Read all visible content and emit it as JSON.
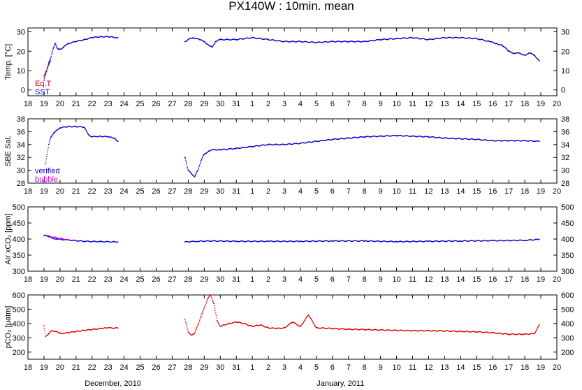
{
  "title": "PX140W : 10min. mean",
  "x_axis": {
    "tick_labels": [
      "18",
      "19",
      "20",
      "21",
      "22",
      "23",
      "24",
      "25",
      "26",
      "27",
      "28",
      "29",
      "30",
      "31",
      "1",
      "2",
      "3",
      "4",
      "5",
      "6",
      "7",
      "8",
      "9",
      "10",
      "11",
      "12",
      "13",
      "14",
      "15",
      "16",
      "17",
      "18",
      "19",
      "20"
    ],
    "month_labels": [
      {
        "text": "December, 2010",
        "at": 5.3
      },
      {
        "text": "January, 2011",
        "at": 19.5
      }
    ]
  },
  "colors": {
    "red": "#dd0000",
    "blue": "#0000cc",
    "magenta": "#cc00cc",
    "axis": "#000000"
  },
  "chart_data": [
    {
      "type": "scatter",
      "ylabel": "Temp. [°C]",
      "ylim": [
        -3,
        32
      ],
      "yticks": [
        0,
        10,
        20,
        30
      ],
      "legend": [
        {
          "name": "Eq.T",
          "color": "#dd0000"
        },
        {
          "name": "SST",
          "color": "#0000cc"
        }
      ],
      "series": [
        {
          "name": "Eq.T",
          "color": "#dd0000",
          "points": [
            [
              1.0,
              7
            ],
            [
              1.1,
              9
            ],
            [
              1.2,
              11
            ],
            [
              1.3,
              13
            ],
            [
              1.4,
              15
            ]
          ]
        },
        {
          "name": "SST",
          "color": "#0000cc",
          "points": [
            [
              1.0,
              5
            ],
            [
              1.1,
              8
            ],
            [
              1.2,
              11
            ],
            [
              1.3,
              14
            ],
            [
              1.4,
              16
            ],
            [
              1.5,
              19
            ],
            [
              1.6,
              22
            ],
            [
              1.7,
              24
            ],
            [
              1.8,
              22
            ],
            [
              1.9,
              21
            ],
            [
              2.0,
              21
            ],
            [
              2.2,
              22
            ],
            [
              2.5,
              24
            ],
            [
              3.0,
              25
            ],
            [
              3.5,
              26
            ],
            [
              4.0,
              27
            ],
            [
              4.5,
              27.5
            ],
            [
              5.0,
              27.5
            ],
            [
              5.6,
              27
            ],
            [
              9.8,
              25
            ],
            [
              10.0,
              26
            ],
            [
              10.3,
              27
            ],
            [
              10.7,
              26
            ],
            [
              11.0,
              25
            ],
            [
              11.3,
              23
            ],
            [
              11.5,
              22
            ],
            [
              11.7,
              25
            ],
            [
              12.0,
              26
            ],
            [
              13.0,
              26
            ],
            [
              14.0,
              27
            ],
            [
              15.0,
              26
            ],
            [
              16.0,
              25
            ],
            [
              17.0,
              25
            ],
            [
              18.0,
              24.5
            ],
            [
              19.0,
              25
            ],
            [
              20.0,
              25
            ],
            [
              21.0,
              25
            ],
            [
              22.0,
              26
            ],
            [
              23.0,
              26.5
            ],
            [
              24.0,
              27
            ],
            [
              25.0,
              26
            ],
            [
              26.0,
              27
            ],
            [
              27.0,
              27
            ],
            [
              28.0,
              26.5
            ],
            [
              28.8,
              25
            ],
            [
              29.2,
              24
            ],
            [
              29.6,
              23
            ],
            [
              30.0,
              20
            ],
            [
              30.3,
              19
            ],
            [
              30.6,
              19
            ],
            [
              31.0,
              18
            ],
            [
              31.3,
              19
            ],
            [
              31.6,
              18
            ],
            [
              31.8,
              16
            ],
            [
              31.9,
              15
            ]
          ]
        }
      ]
    },
    {
      "type": "scatter",
      "ylabel": "SBE Sal.",
      "ylim": [
        28,
        38
      ],
      "yticks": [
        28,
        30,
        32,
        34,
        36,
        38
      ],
      "legend": [
        {
          "name": "verified",
          "color": "#0000cc"
        },
        {
          "name": "bubble",
          "color": "#cc00cc"
        }
      ],
      "series": [
        {
          "name": "verified",
          "color": "#0000cc",
          "points": [
            [
              1.1,
              31
            ],
            [
              1.2,
              32.5
            ],
            [
              1.3,
              34
            ],
            [
              1.4,
              35
            ],
            [
              1.6,
              35.8
            ],
            [
              1.8,
              36.2
            ],
            [
              2.0,
              36.6
            ],
            [
              2.5,
              36.8
            ],
            [
              3.0,
              36.8
            ],
            [
              3.5,
              36.7
            ],
            [
              3.8,
              35.5
            ],
            [
              4.0,
              35.2
            ],
            [
              4.5,
              35.3
            ],
            [
              5.0,
              35.2
            ],
            [
              5.4,
              35
            ],
            [
              5.6,
              34.5
            ],
            [
              9.8,
              32
            ],
            [
              9.9,
              31
            ],
            [
              10.0,
              30
            ],
            [
              10.2,
              29.5
            ],
            [
              10.4,
              29
            ],
            [
              10.6,
              30
            ],
            [
              10.8,
              31.5
            ],
            [
              11.0,
              32.5
            ],
            [
              11.3,
              33
            ],
            [
              11.6,
              33.2
            ],
            [
              12.0,
              33.2
            ],
            [
              13.0,
              33.4
            ],
            [
              14.0,
              33.7
            ],
            [
              15.0,
              34
            ],
            [
              16.0,
              34
            ],
            [
              17.0,
              34.2
            ],
            [
              18.0,
              34.5
            ],
            [
              19.0,
              34.8
            ],
            [
              20.0,
              35
            ],
            [
              21.0,
              35.2
            ],
            [
              22.0,
              35.3
            ],
            [
              23.0,
              35.4
            ],
            [
              24.0,
              35.3
            ],
            [
              25.0,
              35.2
            ],
            [
              26.0,
              35
            ],
            [
              27.0,
              34.9
            ],
            [
              28.0,
              34.8
            ],
            [
              29.0,
              34.6
            ],
            [
              30.0,
              34.6
            ],
            [
              31.0,
              34.6
            ],
            [
              31.9,
              34.5
            ]
          ]
        },
        {
          "name": "bubble",
          "color": "#cc00cc",
          "points": []
        }
      ]
    },
    {
      "type": "scatter",
      "ylabel": "Air xCO₂ [ppm]",
      "ylim": [
        300,
        500
      ],
      "yticks": [
        300,
        350,
        400,
        450,
        500
      ],
      "legend": [],
      "series": [
        {
          "name": "",
          "color": "#0000cc",
          "points": [
            [
              1.0,
              410
            ],
            [
              1.1,
              412
            ],
            [
              1.3,
              408
            ],
            [
              1.5,
              403
            ],
            [
              1.8,
              400
            ],
            [
              2.5,
              397
            ],
            [
              3.5,
              393
            ],
            [
              4.5,
              392
            ],
            [
              5.6,
              391
            ],
            [
              9.8,
              391
            ],
            [
              10.5,
              393
            ],
            [
              11.5,
              394
            ],
            [
              13.0,
              393
            ],
            [
              15.0,
              393
            ],
            [
              17.0,
              393
            ],
            [
              19.0,
              394
            ],
            [
              21.0,
              394
            ],
            [
              23.0,
              392
            ],
            [
              25.0,
              393
            ],
            [
              27.0,
              394
            ],
            [
              29.0,
              395
            ],
            [
              31.0,
              396
            ],
            [
              31.9,
              399
            ]
          ]
        },
        {
          "name": "",
          "color": "#cc00cc",
          "points": [
            [
              1.2,
              410
            ],
            [
              2.6,
              396
            ],
            [
              10.1,
              392
            ],
            [
              20.5,
              394
            ]
          ]
        }
      ]
    },
    {
      "type": "scatter",
      "ylabel": "pCO₂ [μatm]",
      "ylim": [
        150,
        600
      ],
      "yticks": [
        200,
        300,
        400,
        500,
        600
      ],
      "legend": [],
      "series": [
        {
          "name": "",
          "color": "#dd0000",
          "points": [
            [
              1.0,
              385
            ],
            [
              1.1,
              310
            ],
            [
              1.3,
              330
            ],
            [
              1.5,
              350
            ],
            [
              1.8,
              345
            ],
            [
              2.0,
              330
            ],
            [
              2.5,
              335
            ],
            [
              3.0,
              345
            ],
            [
              3.5,
              352
            ],
            [
              4.0,
              358
            ],
            [
              4.5,
              365
            ],
            [
              5.0,
              370
            ],
            [
              5.6,
              368
            ],
            [
              9.8,
              430
            ],
            [
              10.0,
              340
            ],
            [
              10.2,
              320
            ],
            [
              10.4,
              330
            ],
            [
              10.6,
              390
            ],
            [
              10.8,
              450
            ],
            [
              11.0,
              510
            ],
            [
              11.2,
              570
            ],
            [
              11.4,
              600
            ],
            [
              11.6,
              540
            ],
            [
              11.8,
              420
            ],
            [
              12.0,
              380
            ],
            [
              12.5,
              400
            ],
            [
              13.0,
              410
            ],
            [
              13.5,
              400
            ],
            [
              14.0,
              380
            ],
            [
              14.5,
              390
            ],
            [
              15.0,
              370
            ],
            [
              15.5,
              365
            ],
            [
              16.0,
              370
            ],
            [
              16.5,
              410
            ],
            [
              17.0,
              380
            ],
            [
              17.5,
              460
            ],
            [
              18.0,
              370
            ],
            [
              19.0,
              365
            ],
            [
              20.0,
              360
            ],
            [
              21.0,
              358
            ],
            [
              22.0,
              355
            ],
            [
              23.0,
              352
            ],
            [
              24.0,
              350
            ],
            [
              25.0,
              350
            ],
            [
              26.0,
              348
            ],
            [
              27.0,
              345
            ],
            [
              28.0,
              342
            ],
            [
              29.0,
              335
            ],
            [
              30.0,
              325
            ],
            [
              31.0,
              325
            ],
            [
              31.6,
              330
            ],
            [
              31.8,
              370
            ],
            [
              31.9,
              390
            ]
          ]
        }
      ]
    }
  ]
}
